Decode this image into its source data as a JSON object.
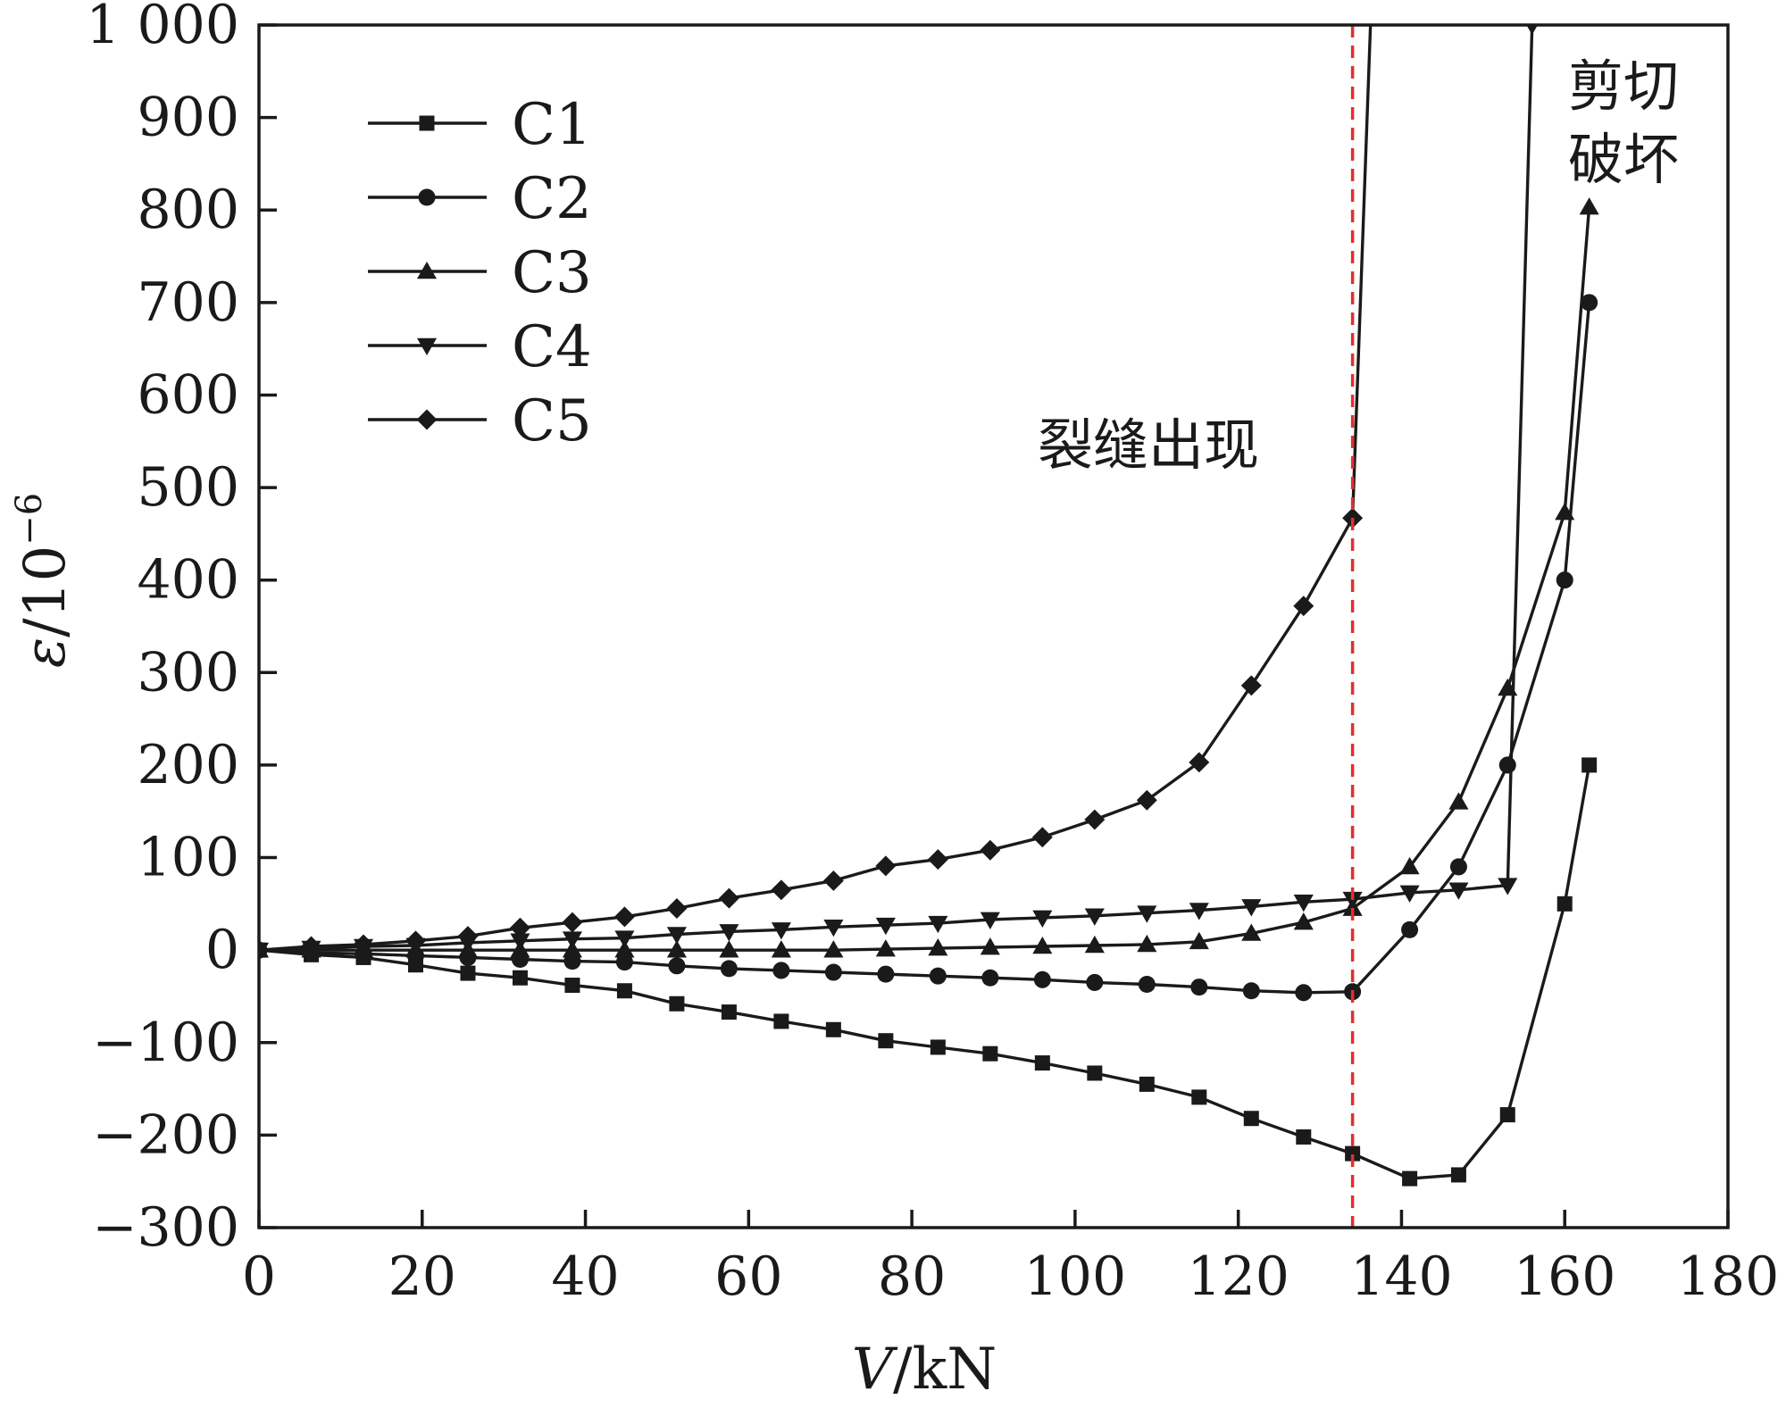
{
  "chart_data": {
    "type": "line",
    "title": "",
    "xlabel_var": "V",
    "xlabel_unit": "/kN",
    "ylabel_var": "ε",
    "ylabel_unit": "/10",
    "ylabel_exp": "−6",
    "xlim": [
      0,
      180
    ],
    "ylim": [
      -300,
      1000
    ],
    "xticks": [
      "0",
      "20",
      "40",
      "60",
      "80",
      "100",
      "120",
      "140",
      "160",
      "180"
    ],
    "yticks": [
      "−300",
      "−200",
      "−100",
      "0",
      "100",
      "200",
      "300",
      "400",
      "500",
      "600",
      "700",
      "800",
      "900",
      "1 000"
    ],
    "grid": false,
    "legend_position": "top-left",
    "line_color": "#1a1a1a",
    "crack_line_color": "#e03030",
    "crack_load": 134,
    "annotations": {
      "crack": "裂缝出现",
      "shear_line1": "剪切",
      "shear_line2": "破坏"
    },
    "series": [
      {
        "name": "C1",
        "marker": "square",
        "x": [
          0,
          6.4,
          12.8,
          19.2,
          25.6,
          32,
          38.4,
          44.8,
          51.2,
          57.6,
          64,
          70.4,
          76.8,
          83.2,
          89.6,
          96,
          102.4,
          108.8,
          115.2,
          121.6,
          128,
          134,
          141,
          147,
          153,
          160,
          163
        ],
        "y": [
          0,
          -5,
          -8,
          -16,
          -25,
          -30,
          -38,
          -44,
          -58,
          -67,
          -77,
          -86,
          -98,
          -105,
          -112,
          -122,
          -133,
          -145,
          -159,
          -182,
          -202,
          -220,
          -247,
          -243,
          -178,
          50,
          200
        ]
      },
      {
        "name": "C2",
        "marker": "circle",
        "x": [
          0,
          6.4,
          12.8,
          19.2,
          25.6,
          32,
          38.4,
          44.8,
          51.2,
          57.6,
          64,
          70.4,
          76.8,
          83.2,
          89.6,
          96,
          102.4,
          108.8,
          115.2,
          121.6,
          128,
          134,
          141,
          147,
          153,
          160,
          163
        ],
        "y": [
          0,
          -3,
          -4,
          -6,
          -8,
          -10,
          -12,
          -13,
          -17,
          -20,
          -22,
          -24,
          -26,
          -28,
          -30,
          -32,
          -35,
          -37,
          -40,
          -44,
          -46,
          -45,
          22,
          90,
          200,
          400,
          700
        ]
      },
      {
        "name": "C3",
        "marker": "triangle-up",
        "x": [
          0,
          6.4,
          12.8,
          19.2,
          25.6,
          32,
          38.4,
          44.8,
          51.2,
          57.6,
          64,
          70.4,
          76.8,
          83.2,
          89.6,
          96,
          102.4,
          108.8,
          115.2,
          121.6,
          128,
          134,
          141,
          147,
          153,
          160,
          163
        ],
        "y": [
          0,
          0,
          0,
          0,
          0,
          0,
          0,
          0,
          0,
          0,
          0,
          0,
          1,
          2,
          3,
          4,
          5,
          6,
          9,
          18,
          30,
          45,
          90,
          160,
          283,
          473,
          803
        ]
      },
      {
        "name": "C4",
        "marker": "triangle-down",
        "x": [
          0,
          6.4,
          12.8,
          19.2,
          25.6,
          32,
          38.4,
          44.8,
          51.2,
          57.6,
          64,
          70.4,
          76.8,
          83.2,
          89.6,
          96,
          102.4,
          108.8,
          115.2,
          121.6,
          128,
          134,
          141,
          147,
          153,
          156
        ],
        "y": [
          0,
          2,
          4,
          5,
          8,
          10,
          12,
          13,
          17,
          20,
          22,
          25,
          27,
          29,
          33,
          35,
          37,
          40,
          43,
          47,
          52,
          55,
          62,
          65,
          70,
          1000
        ]
      },
      {
        "name": "C5",
        "marker": "diamond",
        "x": [
          0,
          6.4,
          12.8,
          19.2,
          25.6,
          32,
          38.4,
          44.8,
          51.2,
          57.6,
          64,
          70.4,
          76.8,
          83.2,
          89.6,
          96,
          102.4,
          108.8,
          115.2,
          121.6,
          128,
          134,
          136.2
        ],
        "y": [
          0,
          4,
          6,
          10,
          15,
          24,
          30,
          36,
          45,
          56,
          65,
          75,
          91,
          98,
          108,
          122,
          141,
          162,
          203,
          286,
          372,
          467,
          1000
        ],
        "no_marker_last": true
      }
    ]
  }
}
